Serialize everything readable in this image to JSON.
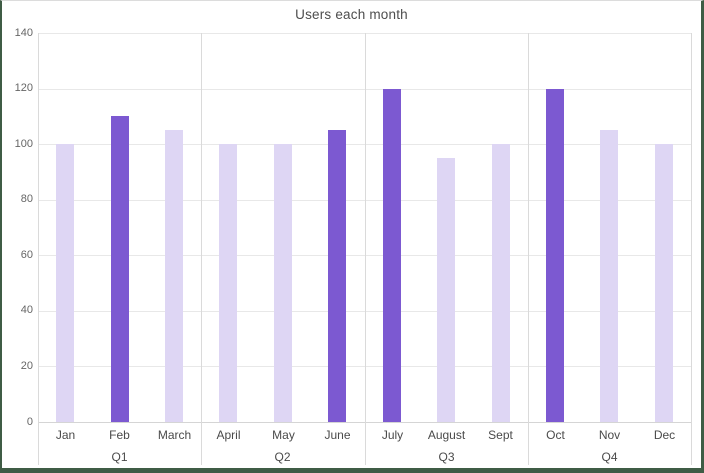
{
  "chart_data": {
    "type": "bar",
    "title": "Users each month",
    "categories": [
      "Jan",
      "Feb",
      "March",
      "April",
      "May",
      "June",
      "July",
      "August",
      "Sept",
      "Oct",
      "Nov",
      "Dec"
    ],
    "values": [
      100,
      110,
      105,
      100,
      100,
      105,
      120,
      95,
      100,
      120,
      105,
      100
    ],
    "groups": [
      {
        "label": "Q1",
        "count": 3
      },
      {
        "label": "Q2",
        "count": 3
      },
      {
        "label": "Q3",
        "count": 3
      },
      {
        "label": "Q4",
        "count": 3
      }
    ],
    "highlighted_categories": [
      "Feb",
      "June",
      "July",
      "Oct"
    ],
    "ylim": [
      0,
      140
    ],
    "y_ticks": [
      0,
      20,
      40,
      60,
      80,
      100,
      120,
      140
    ],
    "grid": true,
    "legend_position": "none",
    "colors": {
      "bar_default": "#ded6f4",
      "bar_highlight": "#7c59d1",
      "gridline": "#e8e8e8",
      "axis_line": "#d5d5d5",
      "separator_line": "#dadada",
      "frame_border": "#3f5c45",
      "title_text": "#4d4d4d",
      "tick_text": "#666666",
      "label_text": "#4a4a4a"
    }
  }
}
